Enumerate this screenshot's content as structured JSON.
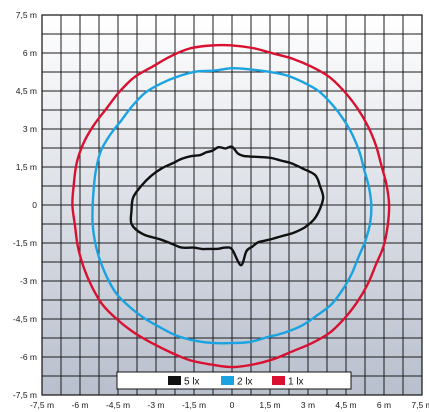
{
  "chart_data": {
    "type": "line",
    "title": "",
    "xlabel": "",
    "ylabel": "",
    "xlim": [
      -7.5,
      7.5
    ],
    "ylim": [
      -7.5,
      7.5
    ],
    "grid": true,
    "legend_position": "bottom-center",
    "x_ticks": [
      -7.5,
      -6,
      -4.5,
      -3,
      -1.5,
      0,
      1.5,
      3,
      4.5,
      6,
      7.5
    ],
    "y_ticks": [
      7.5,
      6,
      4.5,
      3,
      1.5,
      0,
      -1.5,
      -3,
      -4.5,
      -6,
      -7.5
    ],
    "x_tick_labels": [
      "-7,5 m",
      "-6 m",
      "-4,5 m",
      "-3 m",
      "-1,5 m",
      "0",
      "1,5 m",
      "3 m",
      "4,5 m",
      "6 m",
      "7,5 m"
    ],
    "y_tick_labels": [
      "7,5 m",
      "6 m",
      "4,5 m",
      "3 m",
      "1,5 m",
      "0",
      "-1,5 m",
      "-3 m",
      "-4,5 m",
      "-6 m",
      "-7,5 m"
    ],
    "series": [
      {
        "name": "5 lx",
        "color": "#111111",
        "center": [
          0,
          0.3
        ],
        "radii": [
          3.6,
          3.5,
          3.4,
          3.0,
          2.7,
          2.4,
          2.2,
          2.0,
          1.85,
          1.75,
          1.7,
          1.75,
          2.0,
          1.95,
          2.05,
          2.0,
          2.05,
          2.1,
          2.3,
          2.5,
          2.7,
          3.0,
          3.3,
          3.6,
          3.9,
          4.0,
          4.1,
          3.8,
          3.3,
          3.0,
          2.8,
          2.5,
          2.35,
          2.2,
          2.1,
          2.0,
          2.05,
          2.7,
          2.2,
          2.1,
          2.05,
          2.15,
          2.3,
          2.5,
          2.8,
          3.1,
          3.35,
          3.5
        ]
      },
      {
        "name": "2 lx",
        "color": "#1aa3e0",
        "center": [
          0,
          0
        ],
        "radii": [
          5.5,
          5.45,
          5.4,
          5.45,
          5.5,
          5.55,
          5.6,
          5.65,
          5.6,
          5.55,
          5.45,
          5.4,
          5.4,
          5.35,
          5.45,
          5.5,
          5.55,
          5.6,
          5.55,
          5.5,
          5.55,
          5.6,
          5.55,
          5.5,
          5.5,
          5.55,
          5.6,
          5.65,
          5.7,
          5.75,
          5.7,
          5.65,
          5.6,
          5.6,
          5.55,
          5.5,
          5.45,
          5.45,
          5.4,
          5.45,
          5.5,
          5.5,
          5.55,
          5.5,
          5.45,
          5.4,
          5.45,
          5.5
        ]
      },
      {
        "name": "1 lx",
        "color": "#d9102f",
        "center": [
          0,
          0
        ],
        "radii": [
          6.2,
          6.15,
          6.1,
          6.15,
          6.2,
          6.25,
          6.3,
          6.35,
          6.3,
          6.25,
          6.2,
          6.25,
          6.3,
          6.35,
          6.4,
          6.35,
          6.3,
          6.35,
          6.3,
          6.25,
          6.3,
          6.35,
          6.35,
          6.3,
          6.3,
          6.25,
          6.3,
          6.35,
          6.4,
          6.45,
          6.4,
          6.35,
          6.3,
          6.3,
          6.35,
          6.35,
          6.4,
          6.35,
          6.3,
          6.25,
          6.3,
          6.35,
          6.3,
          6.25,
          6.2,
          6.15,
          6.2,
          6.2
        ]
      }
    ]
  }
}
